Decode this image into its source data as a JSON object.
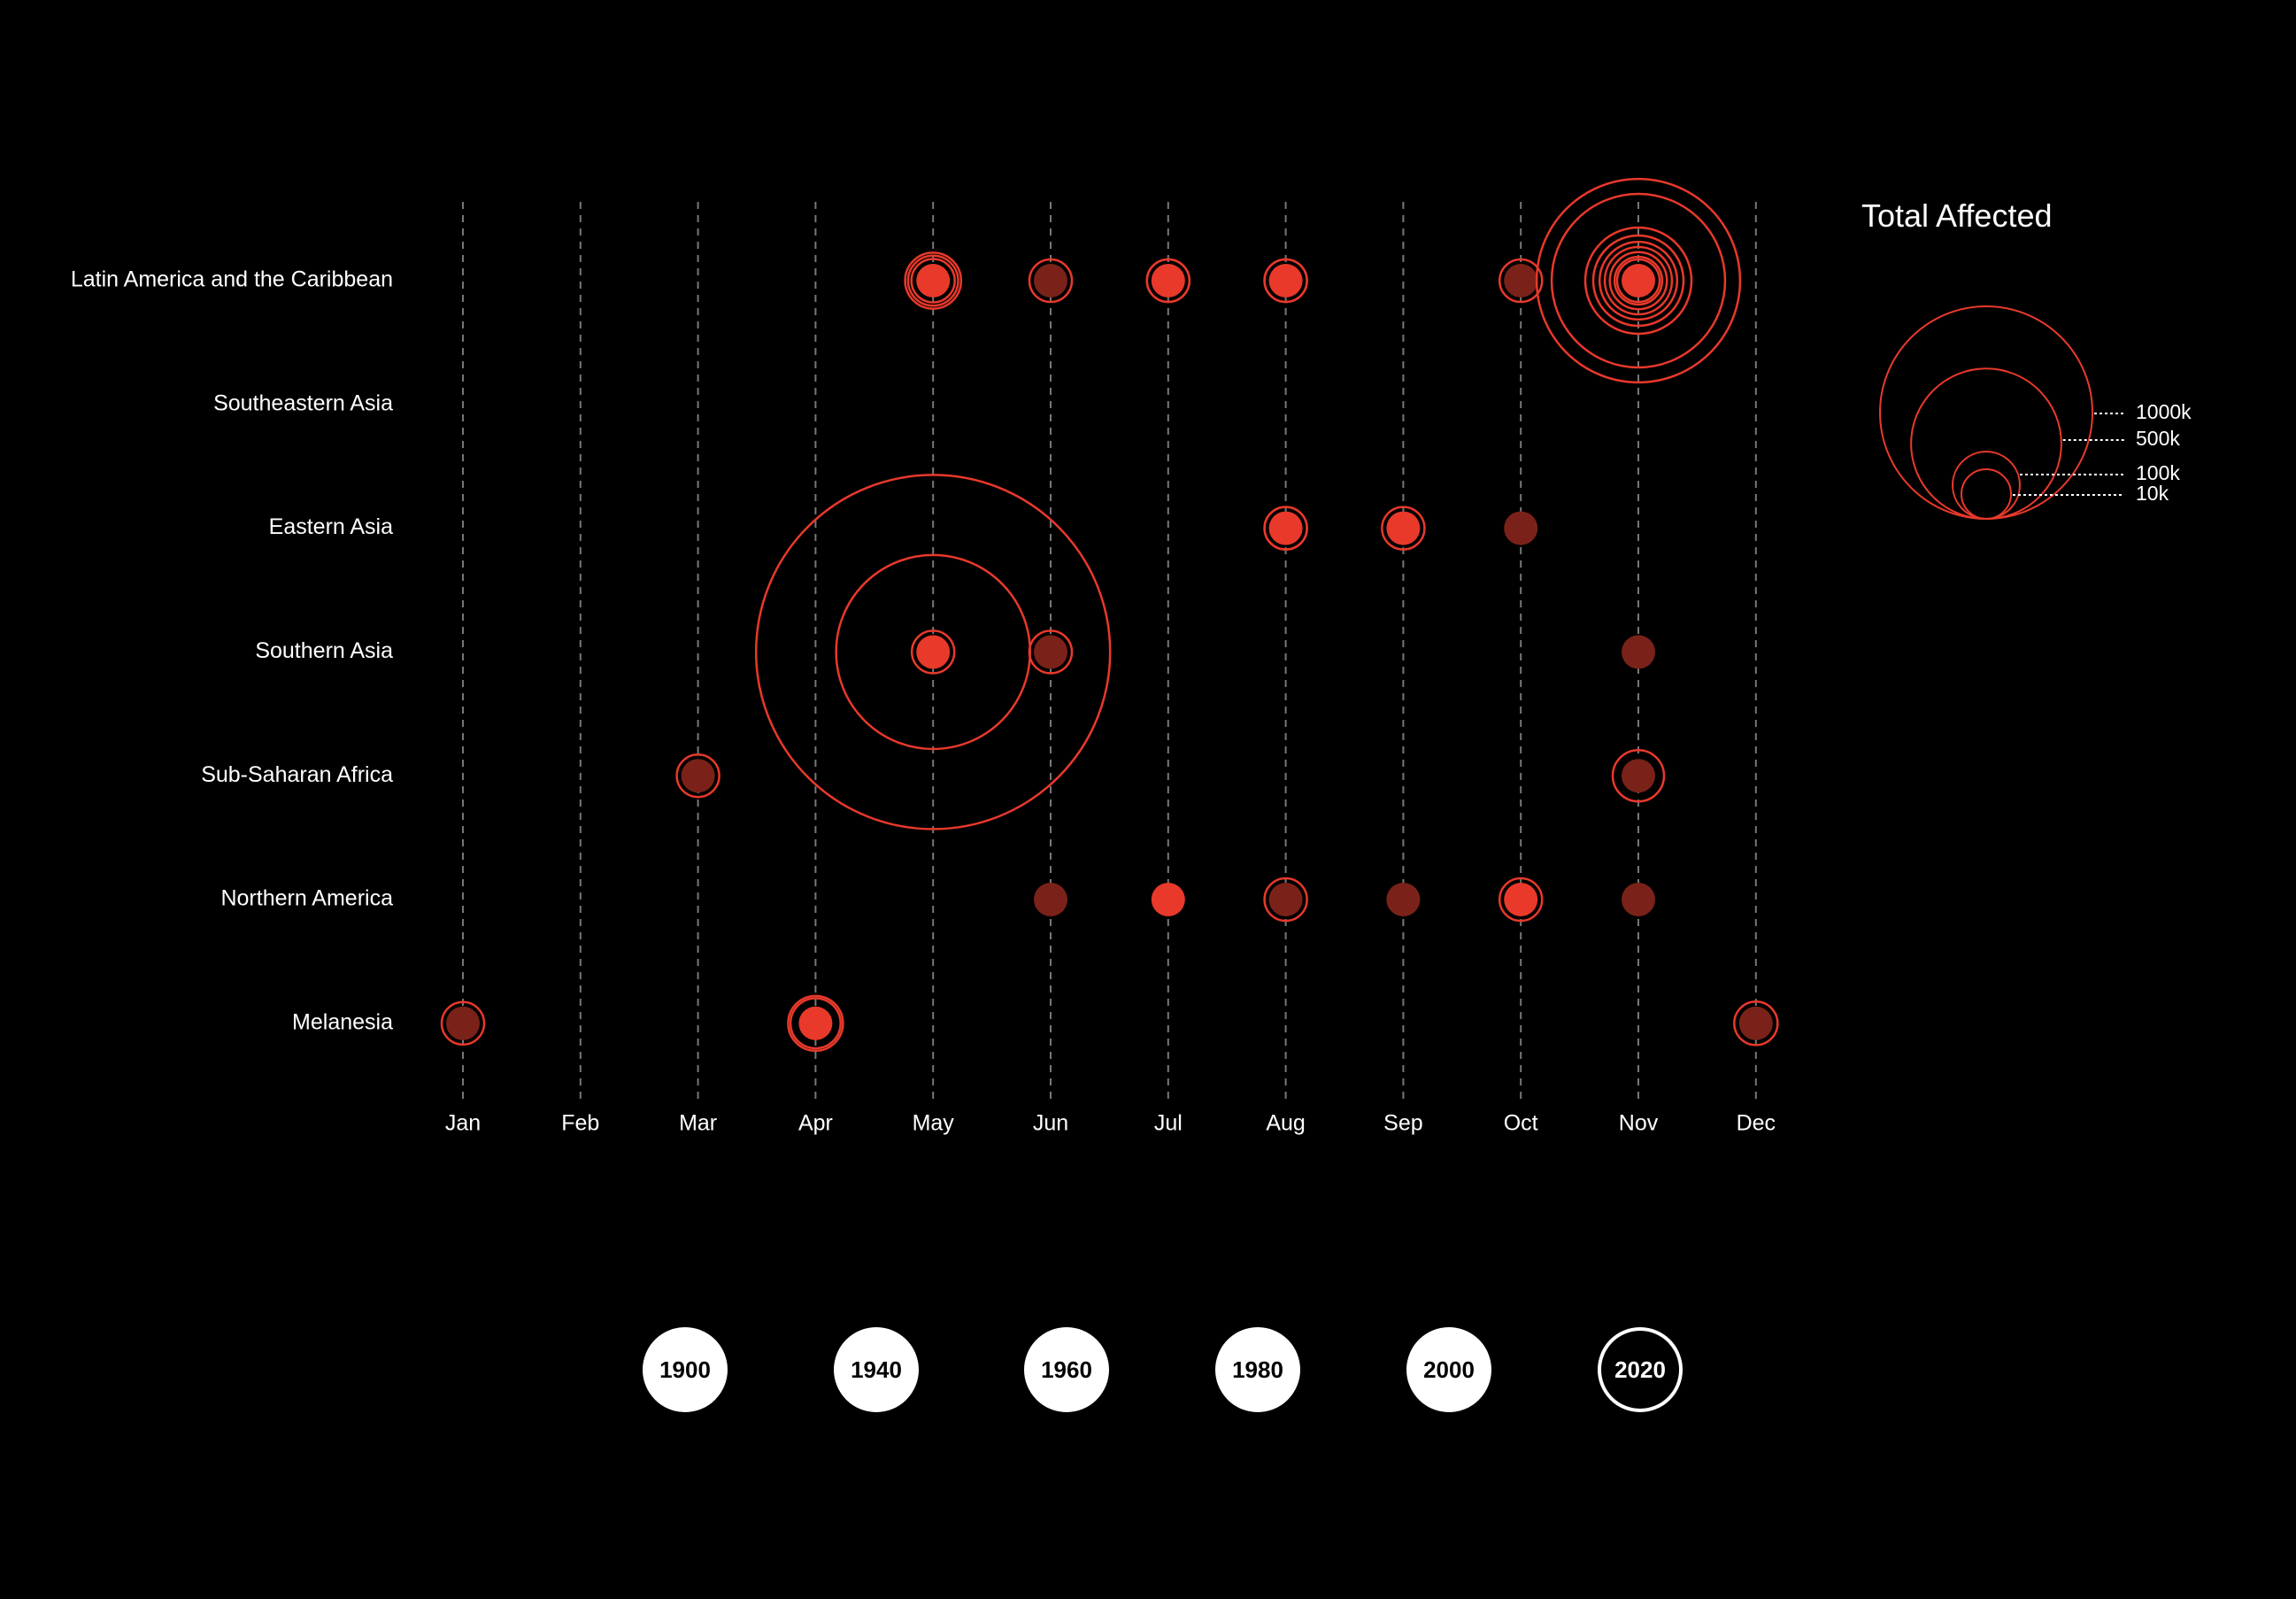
{
  "chart_data": {
    "type": "bubble-timeline",
    "title": "",
    "months": [
      "Jan",
      "Feb",
      "Mar",
      "Apr",
      "May",
      "Jun",
      "Jul",
      "Aug",
      "Sep",
      "Oct",
      "Nov",
      "Dec"
    ],
    "regions": [
      "Latin America and the Caribbean",
      "Southeastern Asia",
      "Eastern Asia",
      "Southern Asia",
      "Sub-Saharan Africa",
      "Northern America",
      "Melanesia"
    ],
    "legend": {
      "title": "Total Affected",
      "sizes": [
        {
          "label": "1000k",
          "value": 1000000
        },
        {
          "label": "500k",
          "value": 500000
        },
        {
          "label": "100k",
          "value": 100000
        },
        {
          "label": "10k",
          "value": 10000
        }
      ]
    },
    "events": [
      {
        "region": "Latin America and the Caribbean",
        "month": "May",
        "affected": [
          20000,
          25000,
          15000
        ],
        "severity": "high"
      },
      {
        "region": "Latin America and the Caribbean",
        "month": "Jun",
        "affected": [
          11000
        ],
        "severity": "low"
      },
      {
        "region": "Latin America and the Caribbean",
        "month": "Jul",
        "affected": [
          11000,
          10000
        ],
        "severity": "high"
      },
      {
        "region": "Latin America and the Caribbean",
        "month": "Aug",
        "affected": [
          13000,
          11000
        ],
        "severity": "high"
      },
      {
        "region": "Latin America and the Caribbean",
        "month": "Oct",
        "affected": [
          12000
        ],
        "severity": "low"
      },
      {
        "region": "Latin America and the Caribbean",
        "month": "Nov",
        "affected": [
          330000,
          240000,
          90000,
          65000,
          48000,
          36000,
          26000,
          18000,
          12000
        ],
        "severity": "high"
      },
      {
        "region": "Eastern Asia",
        "month": "Aug",
        "affected": [
          12000,
          10000
        ],
        "severity": "high"
      },
      {
        "region": "Eastern Asia",
        "month": "Sep",
        "affected": [
          11000
        ],
        "severity": "high"
      },
      {
        "region": "Eastern Asia",
        "month": "Oct",
        "affected": [],
        "severity": "low"
      },
      {
        "region": "Southern Asia",
        "month": "May",
        "affected": [
          1000000,
          300000,
          10000
        ],
        "severity": "high"
      },
      {
        "region": "Southern Asia",
        "month": "Jun",
        "affected": [
          13000
        ],
        "severity": "low"
      },
      {
        "region": "Southern Asia",
        "month": "Nov",
        "affected": [],
        "severity": "low"
      },
      {
        "region": "Sub-Saharan Africa",
        "month": "Mar",
        "affected": [
          12000
        ],
        "severity": "low"
      },
      {
        "region": "Sub-Saharan Africa",
        "month": "Nov",
        "affected": [
          21000
        ],
        "severity": "low"
      },
      {
        "region": "Northern America",
        "month": "Jun",
        "affected": [],
        "severity": "low"
      },
      {
        "region": "Northern America",
        "month": "Jul",
        "affected": [],
        "severity": "high"
      },
      {
        "region": "Northern America",
        "month": "Aug",
        "affected": [
          13000
        ],
        "severity": "low"
      },
      {
        "region": "Northern America",
        "month": "Sep",
        "affected": [],
        "severity": "low"
      },
      {
        "region": "Northern America",
        "month": "Oct",
        "affected": [
          14000
        ],
        "severity": "high"
      },
      {
        "region": "Northern America",
        "month": "Nov",
        "affected": [],
        "severity": "low"
      },
      {
        "region": "Melanesia",
        "month": "Jan",
        "affected": [
          12000
        ],
        "severity": "low"
      },
      {
        "region": "Melanesia",
        "month": "Apr",
        "affected": [
          24000,
          20000
        ],
        "severity": "high"
      },
      {
        "region": "Melanesia",
        "month": "Dec",
        "affected": [
          15000
        ],
        "severity": "low"
      }
    ],
    "colors": {
      "ring": "#e8392b",
      "dot_high": "#e8392b",
      "dot_low": "#7a2219",
      "grid": "#777777"
    }
  },
  "year_selector": {
    "years": [
      "1900",
      "1940",
      "1960",
      "1980",
      "2000",
      "2020"
    ],
    "selected": "2020"
  }
}
